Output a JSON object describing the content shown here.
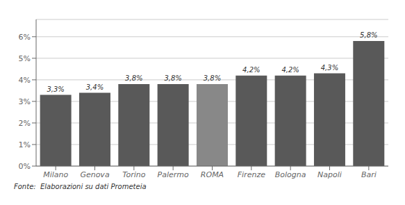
{
  "chart_data": {
    "type": "bar",
    "categories": [
      "Milano",
      "Genova",
      "Torino",
      "Palermo",
      "ROMA",
      "Firenze",
      "Bologna",
      "Napoli",
      "Bari"
    ],
    "values": [
      3.3,
      3.4,
      3.8,
      3.8,
      3.8,
      4.2,
      4.2,
      4.3,
      5.8
    ],
    "value_labels": [
      "3,3%",
      "3,4%",
      "3,8%",
      "3,8%",
      "3,8%",
      "4,2%",
      "4,2%",
      "4,3%",
      "5,8%"
    ],
    "data_labels": true,
    "colors": [
      "#595959",
      "#595959",
      "#595959",
      "#595959",
      "#888888",
      "#595959",
      "#595959",
      "#595959",
      "#595959"
    ],
    "ylim": [
      0,
      6.8
    ],
    "yticks": [
      {
        "value": 0,
        "label": "0%"
      },
      {
        "value": 1,
        "label": "1%"
      },
      {
        "value": 2,
        "label": "2%"
      },
      {
        "value": 3,
        "label": "3%"
      },
      {
        "value": 4,
        "label": "4%"
      },
      {
        "value": 5,
        "label": "5%"
      },
      {
        "value": 6,
        "label": "6%"
      }
    ],
    "grid": true,
    "annotations": [
      "Fonte:  Elaborazioni su dati Prometeia"
    ]
  }
}
